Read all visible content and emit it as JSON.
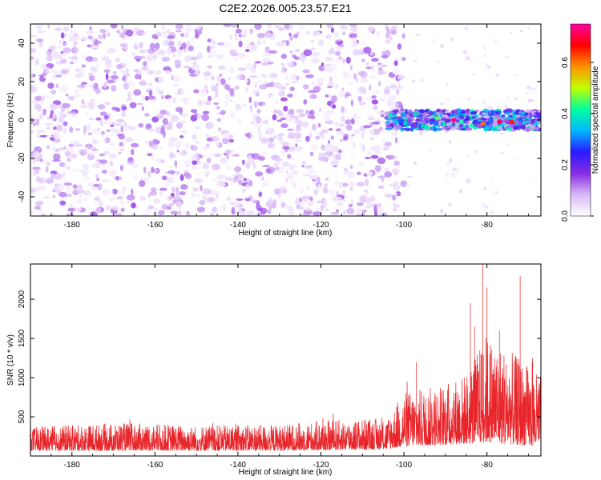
{
  "title": "C2E2.2026.005.23.57.E21",
  "chart_data": [
    {
      "type": "heatmap",
      "id": "spectrogram",
      "xlabel": "Height of straight line (km)",
      "ylabel": "Frequency (Hz)",
      "xlim": [
        -190,
        -67
      ],
      "ylim": [
        -50,
        50
      ],
      "xticks": [
        -180,
        -160,
        -140,
        -120,
        -100,
        -80
      ],
      "yticks": [
        -40,
        -20,
        0,
        20,
        40
      ],
      "xtick_labels": [
        "-180",
        "-160",
        "-140",
        "-120",
        "-100",
        "-80"
      ],
      "ytick_labels": [
        "-40",
        "-20",
        "0",
        "20",
        "40"
      ],
      "noise_region_x": [
        -190,
        -102
      ],
      "signal_band": {
        "x": [
          -104,
          -67
        ],
        "frequency_center": 0,
        "frequency_halfwidth": 5
      },
      "peak_amplitude_points": [
        {
          "x": -88,
          "y": 0,
          "amp": 0.72
        },
        {
          "x": -77,
          "y": -1,
          "amp": 0.7
        },
        {
          "x": -74,
          "y": -1,
          "amp": 0.65
        },
        {
          "x": -81,
          "y": -2,
          "amp": 0.6
        },
        {
          "x": -92,
          "y": 1,
          "amp": 0.45
        }
      ],
      "colorbar": {
        "label": "Normalized spectral amplitude",
        "range": [
          0,
          0.75
        ],
        "ticks": [
          0.0,
          0.2,
          0.4,
          0.6
        ],
        "tick_labels": [
          "0.0",
          "0.2",
          "0.4",
          "0.6"
        ],
        "colors": [
          "#ffffff",
          "#d8b8f8",
          "#8a2be2",
          "#2a1aff",
          "#00b8ff",
          "#00ffa0",
          "#c0ff00",
          "#ff9000",
          "#ff0000",
          "#ff00a0"
        ]
      }
    },
    {
      "type": "line",
      "id": "snr",
      "xlabel": "Height of straight line (km)",
      "ylabel": "SNR (10 * v/v)",
      "xlim": [
        -190,
        -67
      ],
      "ylim": [
        0,
        2450
      ],
      "xticks": [
        -180,
        -160,
        -140,
        -120,
        -100,
        -80
      ],
      "yticks": [
        500,
        1000,
        1500,
        2000
      ],
      "xtick_labels": [
        "-180",
        "-160",
        "-140",
        "-120",
        "-100",
        "-80"
      ],
      "ytick_labels": [
        "500",
        "1000",
        "1500",
        "2000"
      ],
      "color": "#e8252a",
      "envelope": [
        {
          "x": -190,
          "base": 200,
          "spread": 300
        },
        {
          "x": -168,
          "base": 200,
          "spread": 350
        },
        {
          "x": -150,
          "base": 200,
          "spread": 320
        },
        {
          "x": -130,
          "base": 200,
          "spread": 330
        },
        {
          "x": -118,
          "base": 220,
          "spread": 380
        },
        {
          "x": -104,
          "base": 250,
          "spread": 400
        },
        {
          "x": -100,
          "base": 350,
          "spread": 700
        },
        {
          "x": -92,
          "base": 400,
          "spread": 750
        },
        {
          "x": -85,
          "base": 450,
          "spread": 900
        },
        {
          "x": -80,
          "base": 500,
          "spread": 1400
        },
        {
          "x": -72,
          "base": 400,
          "spread": 1100
        },
        {
          "x": -67,
          "base": 350,
          "spread": 900
        }
      ],
      "peaks": [
        {
          "x": -81,
          "y": 2450
        },
        {
          "x": -72,
          "y": 2300
        },
        {
          "x": -80,
          "y": 2150
        },
        {
          "x": -84,
          "y": 1950
        },
        {
          "x": -83,
          "y": 1650
        },
        {
          "x": -97,
          "y": 1200
        },
        {
          "x": -69,
          "y": 1250
        },
        {
          "x": -77,
          "y": 1600
        }
      ]
    }
  ]
}
